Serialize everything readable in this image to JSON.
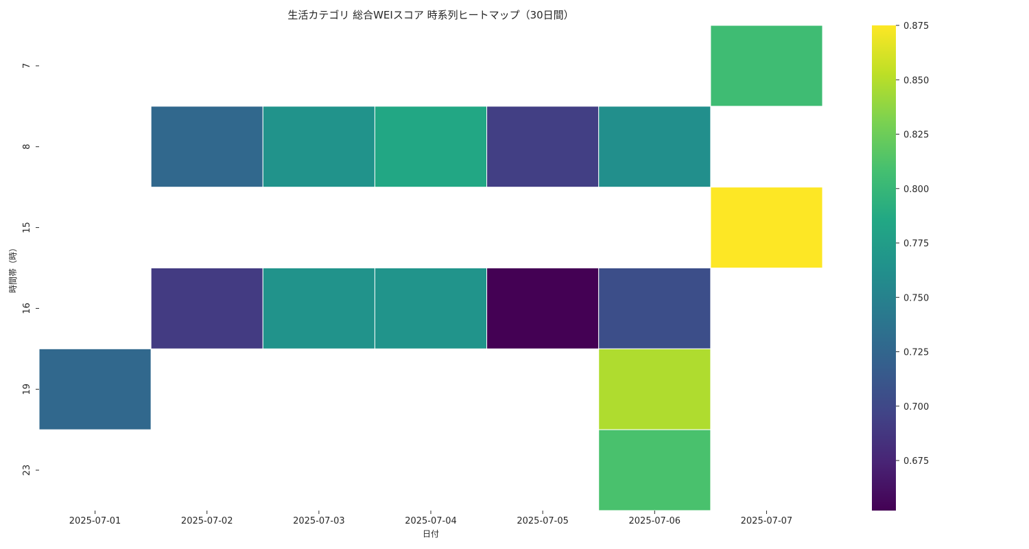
{
  "chart_data": {
    "type": "heatmap",
    "title": "生活カテゴリ 総合WEIスコア 時系列ヒートマップ（30日間）",
    "xlabel": "日付",
    "ylabel": "時間帯（時）",
    "x": [
      "2025-07-01",
      "2025-07-02",
      "2025-07-03",
      "2025-07-04",
      "2025-07-05",
      "2025-07-06",
      "2025-07-07"
    ],
    "y": [
      "7",
      "8",
      "15",
      "16",
      "19",
      "23"
    ],
    "values": [
      [
        null,
        null,
        null,
        null,
        null,
        null,
        0.805
      ],
      [
        null,
        0.727,
        0.765,
        0.785,
        0.693,
        0.762,
        null
      ],
      [
        null,
        null,
        null,
        null,
        null,
        null,
        0.875
      ],
      [
        null,
        0.69,
        0.765,
        0.766,
        0.652,
        0.705,
        null
      ],
      [
        0.727,
        null,
        null,
        null,
        null,
        0.848,
        null
      ],
      [
        null,
        null,
        null,
        null,
        null,
        0.81,
        null
      ]
    ],
    "colormap": "viridis",
    "vmin": 0.652,
    "vmax": 0.875,
    "colorbar_ticks": [
      "0.675",
      "0.700",
      "0.725",
      "0.750",
      "0.775",
      "0.800",
      "0.825",
      "0.850",
      "0.875"
    ]
  }
}
